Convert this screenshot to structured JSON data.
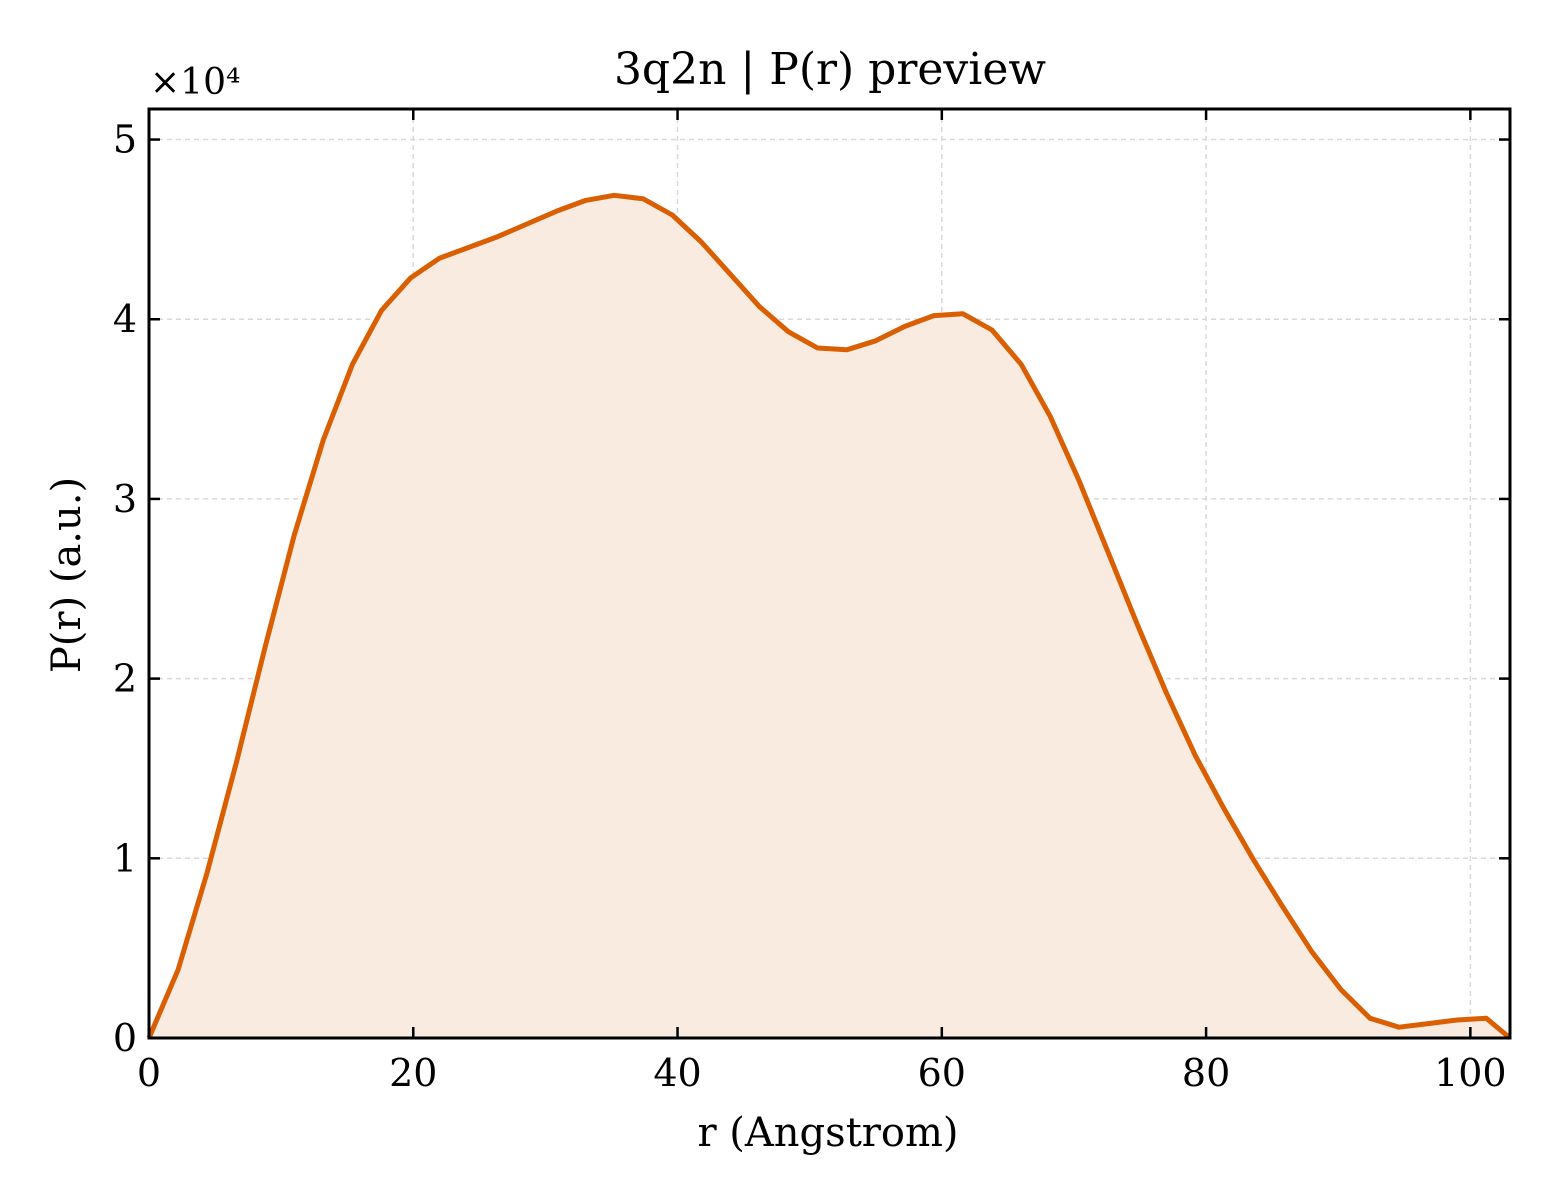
{
  "chart_data": {
    "type": "area",
    "title": "3q2n | P(r) preview",
    "xlabel": "r (Angstrom)",
    "ylabel": "P(r) (a.u.)",
    "y_multiplier_label": "×10⁴",
    "y_multiplier": 10000,
    "xlim": [
      0,
      103
    ],
    "ylim": [
      0,
      51700
    ],
    "xticks": [
      0,
      20,
      40,
      60,
      80,
      100
    ],
    "xtick_labels": [
      "0",
      "20",
      "40",
      "60",
      "80",
      "100"
    ],
    "yticks": [
      0,
      10000,
      20000,
      30000,
      40000,
      50000
    ],
    "ytick_labels": [
      "0",
      "1",
      "2",
      "3",
      "4",
      "5"
    ],
    "grid": true,
    "colors": {
      "line": "#d95f02",
      "fill": "#f9ebe0",
      "grid": "#d9d9d9"
    },
    "series": [
      {
        "x": [
          0.0,
          2.2,
          4.4,
          6.6,
          8.8,
          11.0,
          13.2,
          15.4,
          17.6,
          19.8,
          22.0,
          24.2,
          26.4,
          28.6,
          30.8,
          33.0,
          35.2,
          37.4,
          39.6,
          41.8,
          44.0,
          46.2,
          48.4,
          50.6,
          52.8,
          55.0,
          57.2,
          59.4,
          61.6,
          63.8,
          66.0,
          68.2,
          70.4,
          72.6,
          74.8,
          77.0,
          79.2,
          81.4,
          83.6,
          85.8,
          88.0,
          90.2,
          92.4,
          94.6,
          96.8,
          99.0,
          101.2,
          103.0
        ],
        "y": [
          0,
          3800,
          9200,
          15300,
          21800,
          28000,
          33300,
          37500,
          40500,
          42300,
          43400,
          44000,
          44600,
          45300,
          46000,
          46600,
          46900,
          46700,
          45800,
          44300,
          42500,
          40700,
          39300,
          38400,
          38300,
          38800,
          39600,
          40200,
          40300,
          39400,
          37500,
          34600,
          31000,
          27000,
          23000,
          19200,
          15700,
          12700,
          9900,
          7300,
          4800,
          2700,
          1100,
          600,
          800,
          1000,
          1100,
          0
        ]
      }
    ]
  }
}
